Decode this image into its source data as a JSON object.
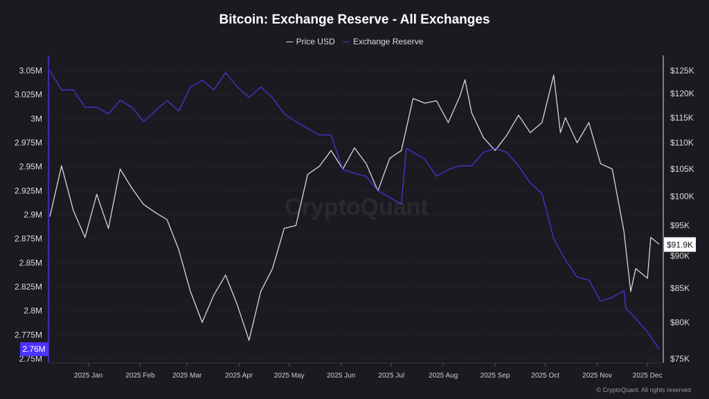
{
  "chart_data": {
    "type": "line",
    "title": "Bitcoin: Exchange Reserve - All Exchanges",
    "watermark": "CryptoQuant",
    "footer": "© CryptoQuant. All rights reserved",
    "grid": true,
    "legend_position": "top-center",
    "x_ticks": [
      "2025 Jan",
      "2025 Feb",
      "2025 Mar",
      "2025 Apr",
      "2025 May",
      "2025 Jun",
      "2025 Jul",
      "2025 Aug",
      "2025 Sep",
      "2025 Oct",
      "2025 Nov",
      "2025 Dec"
    ],
    "x_tick_dates": [
      "2025-01-01",
      "2025-02-01",
      "2025-03-01",
      "2025-04-01",
      "2025-05-01",
      "2025-06-01",
      "2025-07-01",
      "2025-08-01",
      "2025-09-01",
      "2025-10-01",
      "2025-11-01",
      "2025-12-01"
    ],
    "xlim": [
      "2024-12-09",
      "2025-12-08"
    ],
    "y_left": {
      "ticks": [
        "3.05M",
        "3.025M",
        "3M",
        "2.975M",
        "2.95M",
        "2.925M",
        "2.9M",
        "2.875M",
        "2.85M",
        "2.825M",
        "2.8M",
        "2.775M",
        "2.75M"
      ],
      "tick_values": [
        3.05,
        3.025,
        3.0,
        2.975,
        2.95,
        2.925,
        2.9,
        2.875,
        2.85,
        2.825,
        2.8,
        2.775,
        2.75
      ],
      "range": [
        2.75,
        3.05
      ],
      "unit": "M",
      "scale": "linear"
    },
    "y_right": {
      "ticks": [
        "$125K",
        "$120K",
        "$115K",
        "$110K",
        "$105K",
        "$100K",
        "$95K",
        "$90K",
        "$85K",
        "$80K",
        "$75K"
      ],
      "tick_values": [
        125,
        120,
        115,
        110,
        105,
        100,
        95,
        90,
        85,
        80,
        75
      ],
      "range": [
        75,
        125
      ],
      "unit": "K USD",
      "scale": "log"
    },
    "last_value_labels": {
      "reserve": "2.76M",
      "price": "$91.9K"
    },
    "series": [
      {
        "name": "Price USD",
        "axis": "right",
        "color": "#d9d9d9",
        "x": [
          "2024-12-09",
          "2024-12-16",
          "2024-12-23",
          "2024-12-30",
          "2025-01-06",
          "2025-01-13",
          "2025-01-20",
          "2025-01-27",
          "2025-02-03",
          "2025-02-10",
          "2025-02-17",
          "2025-02-24",
          "2025-03-03",
          "2025-03-10",
          "2025-03-17",
          "2025-03-24",
          "2025-03-31",
          "2025-04-07",
          "2025-04-14",
          "2025-04-21",
          "2025-04-28",
          "2025-05-05",
          "2025-05-12",
          "2025-05-19",
          "2025-05-26",
          "2025-06-02",
          "2025-06-09",
          "2025-06-16",
          "2025-06-23",
          "2025-06-30",
          "2025-07-07",
          "2025-07-14",
          "2025-07-21",
          "2025-07-28",
          "2025-08-04",
          "2025-08-11",
          "2025-08-14",
          "2025-08-18",
          "2025-08-25",
          "2025-09-01",
          "2025-09-08",
          "2025-09-15",
          "2025-09-22",
          "2025-09-29",
          "2025-10-06",
          "2025-10-10",
          "2025-10-13",
          "2025-10-20",
          "2025-10-27",
          "2025-11-03",
          "2025-11-10",
          "2025-11-17",
          "2025-11-21",
          "2025-11-24",
          "2025-12-01",
          "2025-12-03",
          "2025-12-08"
        ],
        "values": [
          96.5,
          105.6,
          97.6,
          93.0,
          100.4,
          94.5,
          105.0,
          101.5,
          98.6,
          97.2,
          96.0,
          91.0,
          84.5,
          80.0,
          84.0,
          87.0,
          82.5,
          77.5,
          84.5,
          88.0,
          94.5,
          95.0,
          104.0,
          105.5,
          108.5,
          105.0,
          109.0,
          106.0,
          101.0,
          107.0,
          108.5,
          119.0,
          118.0,
          118.5,
          114.0,
          119.5,
          123.0,
          116.0,
          111.0,
          108.5,
          111.5,
          115.5,
          112.0,
          114.0,
          124.0,
          112.0,
          115.0,
          110.0,
          114.0,
          106.0,
          105.0,
          94.0,
          84.5,
          88.0,
          86.5,
          93.0,
          91.9
        ]
      },
      {
        "name": "Exchange Reserve",
        "axis": "left",
        "color": "#4b33d6",
        "x": [
          "2024-12-09",
          "2024-12-16",
          "2024-12-23",
          "2024-12-30",
          "2025-01-06",
          "2025-01-13",
          "2025-01-20",
          "2025-01-27",
          "2025-02-03",
          "2025-02-10",
          "2025-02-17",
          "2025-02-24",
          "2025-03-03",
          "2025-03-10",
          "2025-03-17",
          "2025-03-24",
          "2025-03-31",
          "2025-04-07",
          "2025-04-14",
          "2025-04-21",
          "2025-04-28",
          "2025-05-05",
          "2025-05-12",
          "2025-05-19",
          "2025-05-26",
          "2025-06-02",
          "2025-06-09",
          "2025-06-16",
          "2025-06-23",
          "2025-06-30",
          "2025-07-07",
          "2025-07-10",
          "2025-07-14",
          "2025-07-21",
          "2025-07-28",
          "2025-08-04",
          "2025-08-11",
          "2025-08-18",
          "2025-08-25",
          "2025-09-01",
          "2025-09-08",
          "2025-09-15",
          "2025-09-22",
          "2025-09-29",
          "2025-10-06",
          "2025-10-13",
          "2025-10-20",
          "2025-10-27",
          "2025-11-03",
          "2025-11-10",
          "2025-11-17",
          "2025-11-18",
          "2025-11-24",
          "2025-12-01",
          "2025-12-08"
        ],
        "values": [
          3.05,
          3.03,
          3.03,
          3.012,
          3.012,
          3.005,
          3.019,
          3.012,
          2.997,
          3.008,
          3.019,
          3.008,
          3.033,
          3.04,
          3.03,
          3.048,
          3.033,
          3.022,
          3.033,
          3.022,
          3.005,
          2.997,
          2.99,
          2.983,
          2.983,
          2.947,
          2.943,
          2.94,
          2.925,
          2.918,
          2.911,
          2.969,
          2.965,
          2.958,
          2.94,
          2.947,
          2.951,
          2.951,
          2.965,
          2.969,
          2.965,
          2.951,
          2.933,
          2.922,
          2.875,
          2.853,
          2.835,
          2.832,
          2.81,
          2.814,
          2.821,
          2.803,
          2.792,
          2.778,
          2.76
        ]
      }
    ]
  }
}
